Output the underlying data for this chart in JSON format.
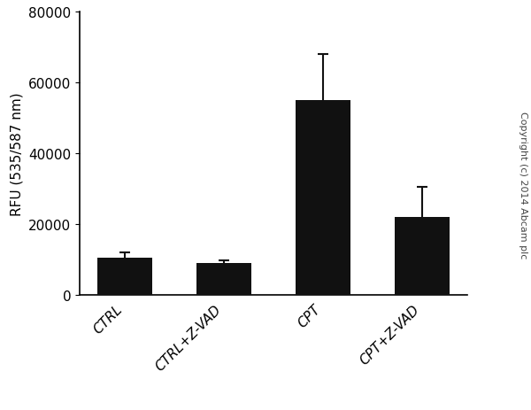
{
  "categories": [
    "CTRL",
    "CTRL+Z-VAD",
    "CPT",
    "CPT+Z-VAD"
  ],
  "values": [
    10500,
    9000,
    55000,
    22000
  ],
  "errors": [
    1500,
    800,
    13000,
    8500
  ],
  "bar_color": "#111111",
  "bar_width": 0.55,
  "ylabel": "RFU (535/587 nm)",
  "ylim": [
    0,
    80000
  ],
  "yticks": [
    0,
    20000,
    40000,
    60000,
    80000
  ],
  "background_color": "#ffffff",
  "copyright_text": "Copyright (c) 2014 Abcam plc",
  "ylabel_fontsize": 11,
  "tick_fontsize": 11,
  "error_capsize": 4,
  "error_linewidth": 1.5
}
